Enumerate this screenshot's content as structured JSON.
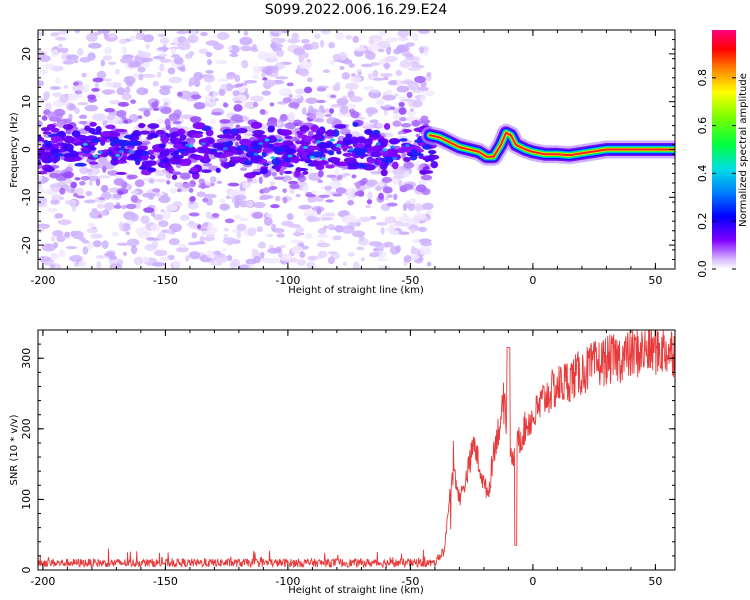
{
  "title": "S099.2022.006.16.29.E24",
  "chart_data": [
    {
      "type": "heatmap",
      "title": "S099.2022.006.16.29.E24",
      "xlabel": "Height of straight line (km)",
      "ylabel": "Frequency (Hz)",
      "xlim": [
        -202,
        58
      ],
      "ylim": [
        -25,
        25
      ],
      "xticks": [
        -200,
        -150,
        -100,
        -50,
        0,
        50
      ],
      "yticks": [
        -20,
        -10,
        0,
        10,
        20
      ],
      "noise_region_x": [
        -202,
        -42
      ],
      "signal_track": {
        "x": [
          -42,
          -38,
          -34,
          -30,
          -26,
          -22,
          -19,
          -16,
          -13,
          -11,
          -9,
          -7,
          -5,
          -3,
          0,
          5,
          10,
          15,
          20,
          25,
          30,
          40,
          50,
          58
        ],
        "freq": [
          3,
          2.5,
          1.5,
          0.5,
          0,
          -0.5,
          -1.5,
          -1.5,
          1,
          3.5,
          3,
          1,
          0.5,
          0,
          -0.5,
          -1,
          -1,
          -1.2,
          -0.8,
          -0.4,
          0,
          0,
          0,
          0
        ]
      },
      "colorbar": {
        "label": "Normalized spectral amplitude",
        "range": [
          0,
          1
        ],
        "ticks": [
          0.0,
          0.2,
          0.4,
          0.6,
          0.8
        ]
      }
    },
    {
      "type": "line",
      "xlabel": "Height of straight line (km)",
      "ylabel": "SNR (10 * v/v)",
      "xlim": [
        -202,
        58
      ],
      "ylim": [
        0,
        340
      ],
      "xticks": [
        -200,
        -150,
        -100,
        -50,
        0,
        50
      ],
      "yticks": [
        0,
        100,
        200,
        300
      ],
      "color": "#e83a3a",
      "trend": {
        "x": [
          -202,
          -40,
          -36,
          -34,
          -32,
          -30,
          -28,
          -26,
          -24,
          -22,
          -20,
          -18,
          -16,
          -14,
          -12,
          -10,
          -8,
          -6,
          -4,
          -2,
          0,
          5,
          10,
          15,
          20,
          25,
          30,
          35,
          40,
          45,
          50,
          58
        ],
        "y": [
          10,
          10,
          30,
          110,
          140,
          100,
          120,
          150,
          180,
          150,
          120,
          110,
          170,
          200,
          230,
          190,
          160,
          180,
          195,
          210,
          215,
          245,
          260,
          270,
          280,
          290,
          297,
          300,
          305,
          310,
          312,
          310
        ]
      },
      "noise_amplitude": 6
    }
  ]
}
